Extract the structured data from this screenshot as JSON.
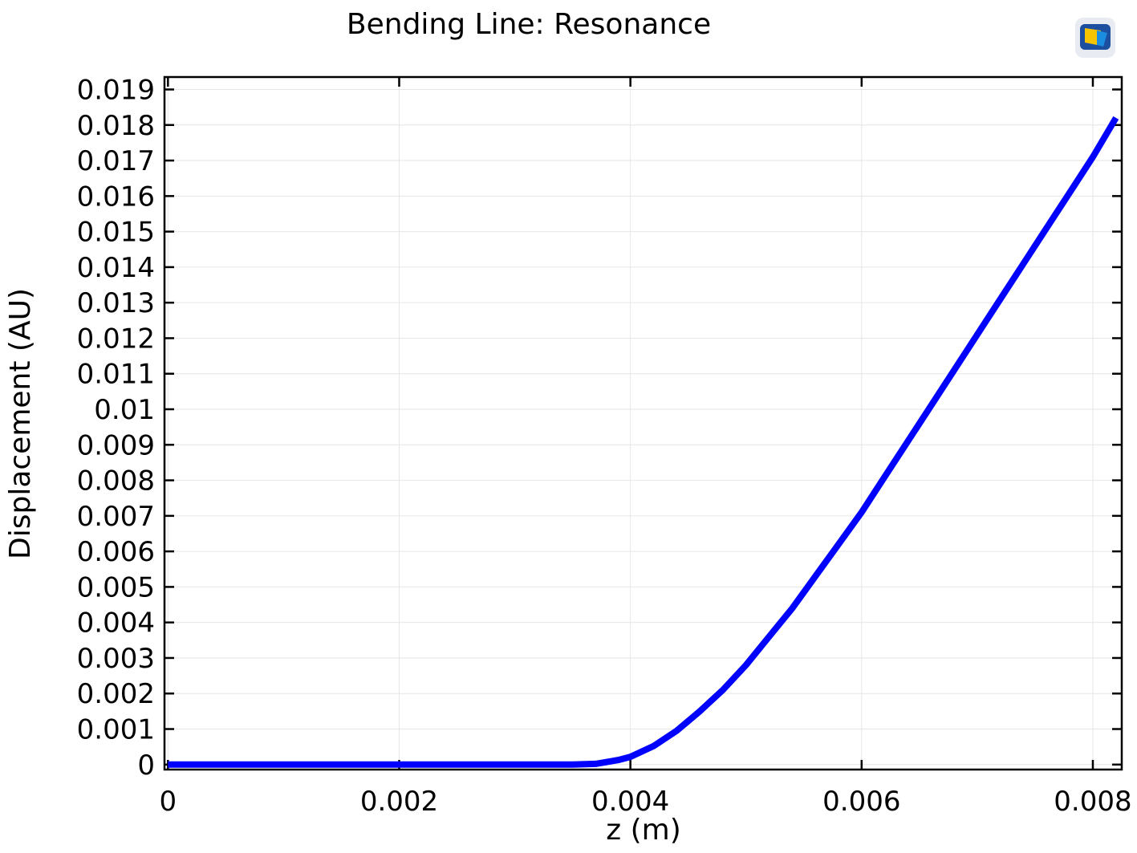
{
  "chart_data": {
    "type": "line",
    "title": "Bending Line: Resonance",
    "xlabel": "z (m)",
    "ylabel": "Displacement (AU)",
    "xlim": [
      -3e-05,
      0.00825
    ],
    "ylim": [
      -0.00014,
      0.01935
    ],
    "x_ticks": [
      "0",
      "0.002",
      "0.004",
      "0.006",
      "0.008"
    ],
    "x_tick_values": [
      0,
      0.002,
      0.004,
      0.006,
      0.008
    ],
    "y_ticks": [
      "0",
      "0.001",
      "0.002",
      "0.003",
      "0.004",
      "0.005",
      "0.006",
      "0.007",
      "0.008",
      "0.009",
      "0.01",
      "0.011",
      "0.012",
      "0.013",
      "0.014",
      "0.015",
      "0.016",
      "0.017",
      "0.018",
      "0.019"
    ],
    "y_tick_values": [
      0,
      0.001,
      0.002,
      0.003,
      0.004,
      0.005,
      0.006,
      0.007,
      0.008,
      0.009,
      0.01,
      0.011,
      0.012,
      0.013,
      0.014,
      0.015,
      0.016,
      0.017,
      0.018,
      0.019
    ],
    "grid": true,
    "line_color": "#0000ff",
    "series": [
      {
        "x": [
          0,
          0.0005,
          0.001,
          0.0015,
          0.002,
          0.0025,
          0.003,
          0.0035,
          0.0037,
          0.0039,
          0.004,
          0.0042,
          0.0044,
          0.0046,
          0.0048,
          0.005,
          0.0052,
          0.0054,
          0.0056,
          0.0058,
          0.006,
          0.0062,
          0.0064,
          0.0066,
          0.0068,
          0.007,
          0.0072,
          0.0074,
          0.0076,
          0.0078,
          0.008,
          0.0082
        ],
        "y": [
          0,
          0,
          0,
          0,
          0,
          0,
          0,
          0,
          2e-05,
          0.00013,
          0.00022,
          0.00052,
          0.00095,
          0.0015,
          0.0021,
          0.0028,
          0.0036,
          0.0044,
          0.0053,
          0.0062,
          0.0071,
          0.0081,
          0.0091,
          0.0101,
          0.0111,
          0.0121,
          0.0131,
          0.0141,
          0.0151,
          0.0161,
          0.0171,
          0.0182
        ]
      }
    ]
  },
  "icons": {
    "logo": "comsol-logo-icon"
  }
}
